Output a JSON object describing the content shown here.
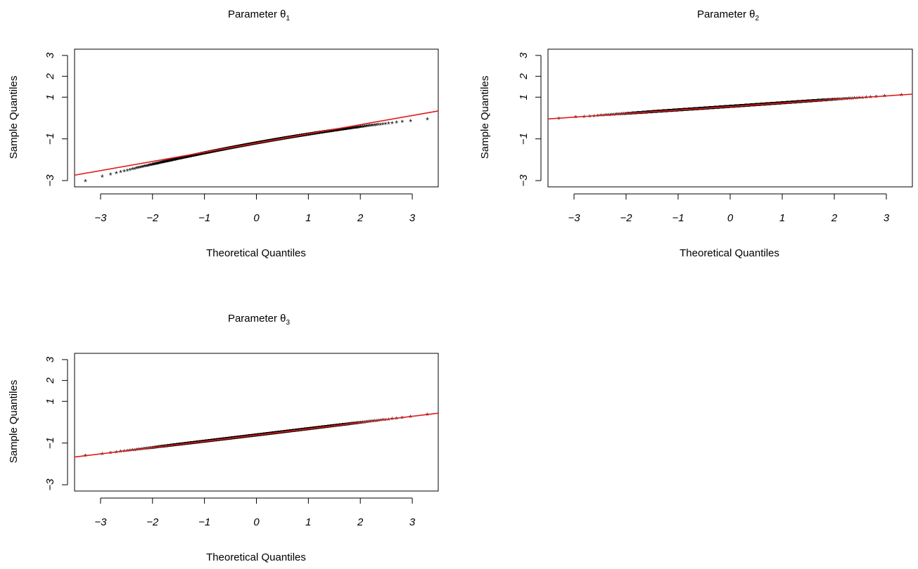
{
  "chart_data": [
    {
      "type": "scatter",
      "title": "Parameter θ",
      "title_subscript": "1",
      "xlabel": "Theoretical Quantiles",
      "ylabel": "Sample Quantiles",
      "xlim": [
        -3.5,
        3.5
      ],
      "ylim": [
        -3.3,
        3.3
      ],
      "xticks": [
        "−3",
        "−2",
        "−1",
        "0",
        "1",
        "2",
        "3"
      ],
      "yticks": [
        "−3",
        "−1",
        "1",
        "2",
        "3"
      ],
      "yticks_values": [
        -3,
        -1,
        1,
        2,
        3
      ],
      "point_marker": "*",
      "point_color": "#000000",
      "n_points": 1000,
      "sample_mean": -1.2,
      "sample_sd": 0.45,
      "tail_curvature": -0.03,
      "reference_line": {
        "intercept": -1.2,
        "slope": 0.44,
        "color": "#e41a1c"
      },
      "grid": false,
      "legend": "none"
    },
    {
      "type": "scatter",
      "title": "Parameter θ",
      "title_subscript": "2",
      "xlabel": "Theoretical Quantiles",
      "ylabel": "Sample Quantiles",
      "xlim": [
        -3.5,
        3.5
      ],
      "ylim": [
        -3.3,
        3.3
      ],
      "xticks": [
        "−3",
        "−2",
        "−1",
        "0",
        "1",
        "2",
        "3"
      ],
      "yticks": [
        "−3",
        "−1",
        "1",
        "2",
        "3"
      ],
      "yticks_values": [
        -3,
        -1,
        1,
        2,
        3
      ],
      "point_marker": "*",
      "point_color": "#000000",
      "n_points": 1000,
      "sample_mean": 0.55,
      "sample_sd": 0.17,
      "tail_curvature": 0.0,
      "reference_line": {
        "intercept": 0.55,
        "slope": 0.17,
        "color": "#e41a1c"
      },
      "grid": false,
      "legend": "none"
    },
    {
      "type": "scatter",
      "title": "Parameter θ",
      "title_subscript": "3",
      "xlabel": "Theoretical Quantiles",
      "ylabel": "Sample Quantiles",
      "xlim": [
        -3.5,
        3.5
      ],
      "ylim": [
        -3.3,
        3.3
      ],
      "xticks": [
        "−3",
        "−2",
        "−1",
        "0",
        "1",
        "2",
        "3"
      ],
      "yticks": [
        "−3",
        "−1",
        "1",
        "2",
        "3"
      ],
      "yticks_values": [
        -3,
        -1,
        1,
        2,
        3
      ],
      "point_marker": "*",
      "point_color": "#000000",
      "n_points": 1000,
      "sample_mean": -0.62,
      "sample_sd": 0.3,
      "tail_curvature": 0.0,
      "reference_line": {
        "intercept": -0.62,
        "slope": 0.3,
        "color": "#e41a1c"
      },
      "grid": false,
      "legend": "none"
    }
  ]
}
